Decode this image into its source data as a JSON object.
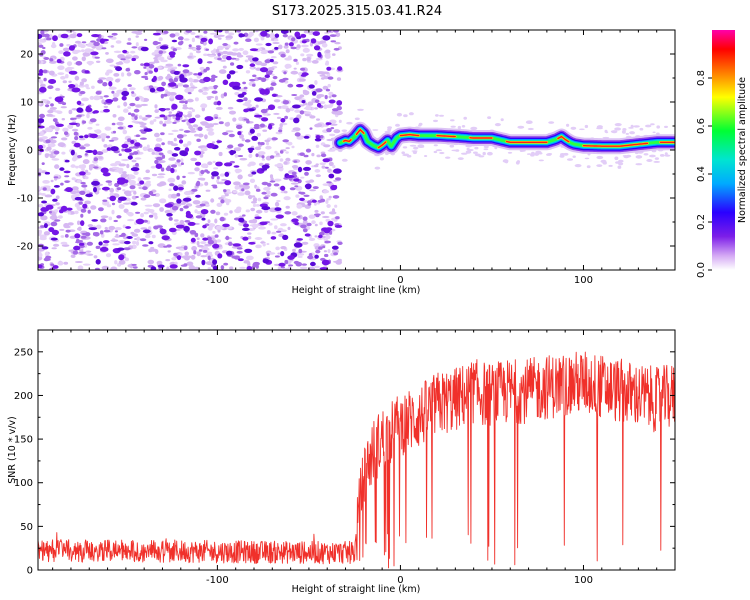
{
  "title": "S173.2025.315.03.41.R24",
  "chart_data": [
    {
      "type": "heatmap",
      "name": "spectrogram",
      "xlabel": "Height of straight line (km)",
      "ylabel": "Frequency (Hz)",
      "xlim": [
        -198,
        150
      ],
      "ylim": [
        -25,
        25
      ],
      "xticks": [
        -100,
        0,
        100
      ],
      "yticks": [
        -20,
        -10,
        0,
        10,
        20
      ],
      "noise_region_x": [
        -198,
        -33
      ],
      "signal_region_x": [
        -33,
        150
      ],
      "peak_frequency_track": {
        "x": [
          -33,
          -30,
          -28,
          -25,
          -22,
          -20,
          -18,
          -15,
          -12,
          -10,
          -7,
          -5,
          -2,
          0,
          5,
          10,
          20,
          30,
          40,
          50,
          60,
          70,
          80,
          85,
          88,
          90,
          93,
          95,
          100,
          110,
          120,
          130,
          140,
          150
        ],
        "freq": [
          1.5,
          2.0,
          1.8,
          2.8,
          4.2,
          3.5,
          1.8,
          1.0,
          0.5,
          1.0,
          2.0,
          0.8,
          2.5,
          3.0,
          3.2,
          3.0,
          3.0,
          2.8,
          2.5,
          2.5,
          1.6,
          1.6,
          1.6,
          2.2,
          2.8,
          2.2,
          1.5,
          1.2,
          0.9,
          0.8,
          0.8,
          1.2,
          1.6,
          1.6
        ]
      },
      "colorbar": {
        "label": "Normalized spectral amplitude",
        "range": [
          0.0,
          1.0
        ],
        "ticks": [
          0.0,
          0.2,
          0.4,
          0.6,
          0.8
        ],
        "tick_labels": [
          "0.0",
          "0.2",
          "0.4",
          "0.6",
          "0.8"
        ],
        "colormap": [
          "#ffffff",
          "#d4a8f4",
          "#7c1ee8",
          "#2a00ff",
          "#00e5ff",
          "#00ff33",
          "#ffff00",
          "#ff7f00",
          "#ff0000",
          "#ff00aa"
        ]
      }
    },
    {
      "type": "line",
      "name": "snr",
      "xlabel": "Height of straight line (km)",
      "ylabel": "SNR (10 * v/v)",
      "xlim": [
        -198,
        150
      ],
      "ylim": [
        0,
        275
      ],
      "xticks": [
        -100,
        0,
        100
      ],
      "yticks": [
        0,
        50,
        100,
        150,
        200,
        250
      ],
      "line_color": "#f0302a",
      "trend": {
        "x": [
          -198,
          -150,
          -100,
          -50,
          -25,
          -23,
          -20,
          -15,
          -10,
          -5,
          0,
          10,
          20,
          30,
          40,
          50,
          60,
          70,
          80,
          90,
          100,
          110,
          120,
          130,
          140,
          150
        ],
        "y": [
          22,
          22,
          21,
          20,
          20,
          60,
          110,
          135,
          150,
          158,
          168,
          175,
          190,
          195,
          205,
          200,
          205,
          205,
          210,
          212,
          215,
          210,
          205,
          200,
          195,
          200
        ]
      }
    }
  ]
}
